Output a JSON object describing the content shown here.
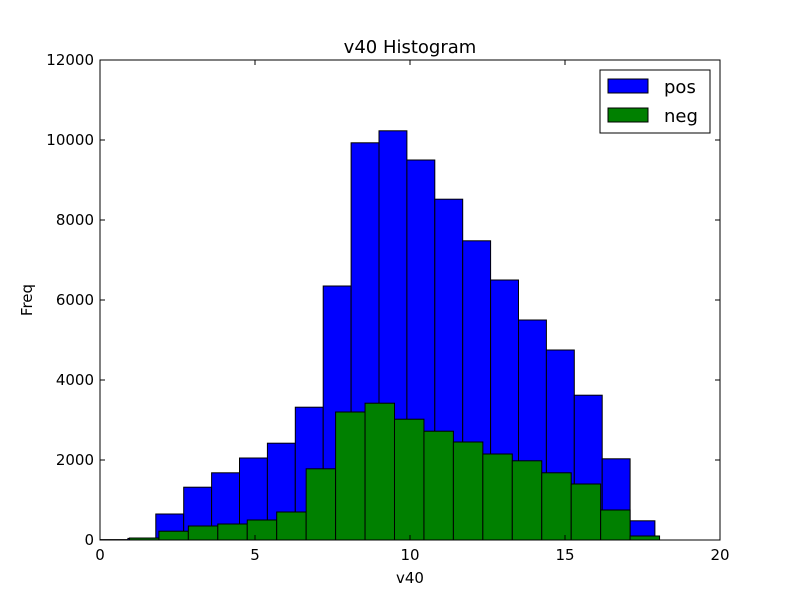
{
  "chart_data": {
    "type": "bar",
    "title": "v40 Histogram",
    "xlabel": "v40",
    "ylabel": "Freq",
    "xlim": [
      0,
      20
    ],
    "ylim": [
      0,
      12000
    ],
    "xticks": [
      0,
      5,
      10,
      15,
      20
    ],
    "yticks": [
      0,
      2000,
      4000,
      6000,
      8000,
      10000,
      12000
    ],
    "xtick_labels": [
      "0",
      "5",
      "10",
      "15",
      "20"
    ],
    "ytick_labels": [
      "0",
      "2000",
      "4000",
      "6000",
      "8000",
      "10000",
      "12000"
    ],
    "legend_position": "top-right",
    "grid": false,
    "series": [
      {
        "name": "pos",
        "color": "#0000ff",
        "bins": [
          {
            "x0": 0.0,
            "x1": 0.9,
            "value": 10
          },
          {
            "x0": 0.9,
            "x1": 1.8,
            "value": 40
          },
          {
            "x0": 1.8,
            "x1": 2.7,
            "value": 650
          },
          {
            "x0": 2.7,
            "x1": 3.6,
            "value": 1320
          },
          {
            "x0": 3.6,
            "x1": 4.5,
            "value": 1680
          },
          {
            "x0": 4.5,
            "x1": 5.4,
            "value": 2050
          },
          {
            "x0": 5.4,
            "x1": 6.3,
            "value": 2420
          },
          {
            "x0": 6.3,
            "x1": 7.2,
            "value": 3320
          },
          {
            "x0": 7.2,
            "x1": 8.1,
            "value": 6350
          },
          {
            "x0": 8.1,
            "x1": 9.0,
            "value": 9930
          },
          {
            "x0": 9.0,
            "x1": 9.9,
            "value": 10230
          },
          {
            "x0": 9.9,
            "x1": 10.8,
            "value": 9500
          },
          {
            "x0": 10.8,
            "x1": 11.7,
            "value": 8520
          },
          {
            "x0": 11.7,
            "x1": 12.6,
            "value": 7480
          },
          {
            "x0": 12.6,
            "x1": 13.5,
            "value": 6500
          },
          {
            "x0": 13.5,
            "x1": 14.4,
            "value": 5500
          },
          {
            "x0": 14.4,
            "x1": 15.3,
            "value": 4750
          },
          {
            "x0": 15.3,
            "x1": 16.2,
            "value": 3620
          },
          {
            "x0": 16.2,
            "x1": 17.1,
            "value": 2030
          },
          {
            "x0": 17.1,
            "x1": 17.9,
            "value": 480
          }
        ]
      },
      {
        "name": "neg",
        "color": "#008000",
        "bins": [
          {
            "x0": 0.95,
            "x1": 1.9,
            "value": 50
          },
          {
            "x0": 1.9,
            "x1": 2.85,
            "value": 220
          },
          {
            "x0": 2.85,
            "x1": 3.8,
            "value": 350
          },
          {
            "x0": 3.8,
            "x1": 4.75,
            "value": 400
          },
          {
            "x0": 4.75,
            "x1": 5.7,
            "value": 500
          },
          {
            "x0": 5.7,
            "x1": 6.65,
            "value": 700
          },
          {
            "x0": 6.65,
            "x1": 7.6,
            "value": 1780
          },
          {
            "x0": 7.6,
            "x1": 8.55,
            "value": 3200
          },
          {
            "x0": 8.55,
            "x1": 9.5,
            "value": 3420
          },
          {
            "x0": 9.5,
            "x1": 10.45,
            "value": 3020
          },
          {
            "x0": 10.45,
            "x1": 11.4,
            "value": 2720
          },
          {
            "x0": 11.4,
            "x1": 12.35,
            "value": 2450
          },
          {
            "x0": 12.35,
            "x1": 13.3,
            "value": 2150
          },
          {
            "x0": 13.3,
            "x1": 14.25,
            "value": 1980
          },
          {
            "x0": 14.25,
            "x1": 15.2,
            "value": 1680
          },
          {
            "x0": 15.2,
            "x1": 16.15,
            "value": 1400
          },
          {
            "x0": 16.15,
            "x1": 17.1,
            "value": 750
          },
          {
            "x0": 17.1,
            "x1": 18.05,
            "value": 100
          }
        ]
      }
    ]
  }
}
